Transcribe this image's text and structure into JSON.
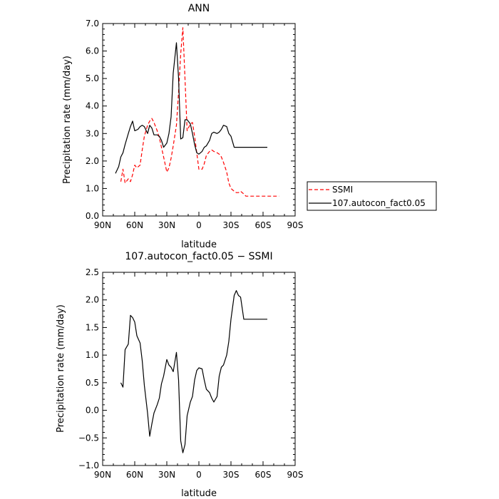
{
  "chart_data": [
    {
      "type": "line",
      "title": "ANN",
      "xlabel": "latitude",
      "ylabel": "Precipitation rate (mm/day)",
      "xlim": [
        -90,
        90
      ],
      "ylim": [
        0,
        7
      ],
      "x_ticks": [
        -90,
        -60,
        -30,
        0,
        30,
        60,
        90
      ],
      "x_tick_labels": [
        "90N",
        "60N",
        "30N",
        "0",
        "30S",
        "60S",
        "90S"
      ],
      "y_ticks": [
        0,
        1,
        2,
        3,
        4,
        5,
        6,
        7
      ],
      "y_tick_labels": [
        "0.0",
        "1.0",
        "2.0",
        "3.0",
        "4.0",
        "5.0",
        "6.0",
        "7.0"
      ],
      "legend_position": "outside-right",
      "series": [
        {
          "name": "SSMI",
          "color": "#ff0000",
          "dash": true,
          "x": [
            -73,
            -71,
            -69,
            -66,
            -64,
            -62,
            -60,
            -58,
            -55,
            -53,
            -51,
            -48,
            -46,
            -44,
            -42,
            -39,
            -37,
            -35,
            -33,
            -30,
            -28,
            -26,
            -24,
            -21,
            -19,
            -17,
            -15,
            -13,
            -11,
            -8,
            -6,
            -4,
            -2,
            0,
            3,
            5,
            7,
            10,
            12,
            14,
            17,
            19,
            21,
            23,
            26,
            28,
            30,
            33,
            35,
            37,
            39,
            42,
            44,
            46,
            48,
            51,
            53,
            55,
            57,
            60,
            62,
            64,
            66,
            69,
            71,
            73,
            75
          ],
          "y": [
            1.25,
            1.7,
            1.2,
            1.35,
            1.25,
            1.5,
            1.85,
            1.75,
            1.85,
            2.4,
            2.9,
            3.3,
            3.45,
            3.55,
            3.4,
            3.1,
            2.85,
            2.5,
            2.15,
            1.6,
            1.75,
            2.1,
            2.55,
            3.3,
            4.5,
            5.9,
            6.85,
            5.0,
            3.1,
            3.35,
            3.4,
            2.9,
            2.3,
            1.7,
            1.7,
            1.9,
            2.2,
            2.35,
            2.4,
            2.35,
            2.3,
            2.25,
            2.15,
            1.95,
            1.6,
            1.2,
            1.0,
            0.9,
            0.85,
            0.85,
            0.9,
            0.8,
            0.72,
            0.72,
            0.72,
            0.72,
            0.72,
            0.72,
            0.72,
            0.72,
            0.72,
            0.72,
            0.72,
            0.72,
            0.72,
            0.72,
            0.72
          ]
        },
        {
          "name": "107.autocon_fact0.05",
          "color": "#000000",
          "dash": false,
          "x": [
            -78,
            -75,
            -73,
            -71,
            -69,
            -66,
            -64,
            -62,
            -60,
            -57,
            -55,
            -53,
            -51,
            -48,
            -46,
            -44,
            -42,
            -39,
            -37,
            -35,
            -33,
            -30,
            -28,
            -26,
            -24,
            -21,
            -19,
            -17,
            -15,
            -13,
            -11,
            -8,
            -6,
            -4,
            -2,
            0,
            3,
            5,
            7,
            10,
            12,
            14,
            17,
            19,
            21,
            23,
            26,
            28,
            30,
            33,
            35,
            37,
            39,
            42,
            44,
            46,
            48,
            51,
            53,
            55,
            57,
            60,
            62,
            64
          ],
          "y": [
            1.55,
            1.8,
            2.15,
            2.3,
            2.6,
            3.0,
            3.25,
            3.45,
            3.1,
            3.15,
            3.25,
            3.3,
            3.25,
            3.0,
            3.3,
            3.2,
            2.95,
            2.95,
            2.9,
            2.75,
            2.5,
            2.65,
            3.0,
            3.6,
            5.2,
            6.3,
            5.0,
            2.8,
            2.85,
            3.5,
            3.5,
            3.35,
            3.0,
            2.6,
            2.3,
            2.25,
            2.35,
            2.5,
            2.55,
            2.75,
            3.0,
            3.05,
            3.0,
            3.05,
            3.15,
            3.3,
            3.25,
            3.0,
            2.9,
            2.5,
            2.5,
            2.5,
            2.5,
            2.5,
            2.5,
            2.5,
            2.5,
            2.5,
            2.5,
            2.5,
            2.5,
            2.5,
            2.5,
            2.5
          ]
        }
      ]
    },
    {
      "type": "line",
      "title": "107.autocon_fact0.05 − SSMI",
      "xlabel": "latitude",
      "ylabel": "Precipitation rate (mm/day)",
      "xlim": [
        -90,
        90
      ],
      "ylim": [
        -1,
        2.5
      ],
      "x_ticks": [
        -90,
        -60,
        -30,
        0,
        30,
        60,
        90
      ],
      "x_tick_labels": [
        "90N",
        "60N",
        "30N",
        "0",
        "30S",
        "60S",
        "90S"
      ],
      "y_ticks": [
        -1,
        -0.5,
        0,
        0.5,
        1,
        1.5,
        2,
        2.5
      ],
      "y_tick_labels": [
        "−1.0",
        "−0.5",
        "0.0",
        "0.5",
        "1.0",
        "1.5",
        "2.0",
        "2.5"
      ],
      "series": [
        {
          "color": "#000000",
          "dash": false,
          "x": [
            -73,
            -71,
            -69,
            -66,
            -64,
            -62,
            -60,
            -58,
            -55,
            -53,
            -51,
            -48,
            -46,
            -44,
            -42,
            -39,
            -37,
            -35,
            -33,
            -30,
            -28,
            -26,
            -24,
            -21,
            -19,
            -17,
            -15,
            -13,
            -11,
            -8,
            -6,
            -4,
            -2,
            0,
            3,
            5,
            7,
            10,
            12,
            14,
            17,
            19,
            21,
            23,
            26,
            28,
            30,
            33,
            35,
            37,
            39,
            42,
            44,
            46,
            48,
            51,
            53,
            55,
            57,
            60,
            62,
            64
          ],
          "y": [
            0.5,
            0.42,
            1.1,
            1.2,
            1.72,
            1.68,
            1.6,
            1.35,
            1.22,
            0.9,
            0.45,
            -0.05,
            -0.47,
            -0.25,
            -0.05,
            0.1,
            0.22,
            0.48,
            0.62,
            0.92,
            0.82,
            0.78,
            0.7,
            1.05,
            0.55,
            -0.55,
            -0.77,
            -0.62,
            -0.1,
            0.15,
            0.25,
            0.55,
            0.72,
            0.77,
            0.75,
            0.55,
            0.38,
            0.32,
            0.22,
            0.15,
            0.25,
            0.62,
            0.78,
            0.82,
            1.0,
            1.25,
            1.65,
            2.08,
            2.17,
            2.08,
            2.05,
            1.65,
            1.65,
            1.65,
            1.65,
            1.65,
            1.65,
            1.65,
            1.65,
            1.65,
            1.65,
            1.65
          ]
        }
      ]
    }
  ]
}
